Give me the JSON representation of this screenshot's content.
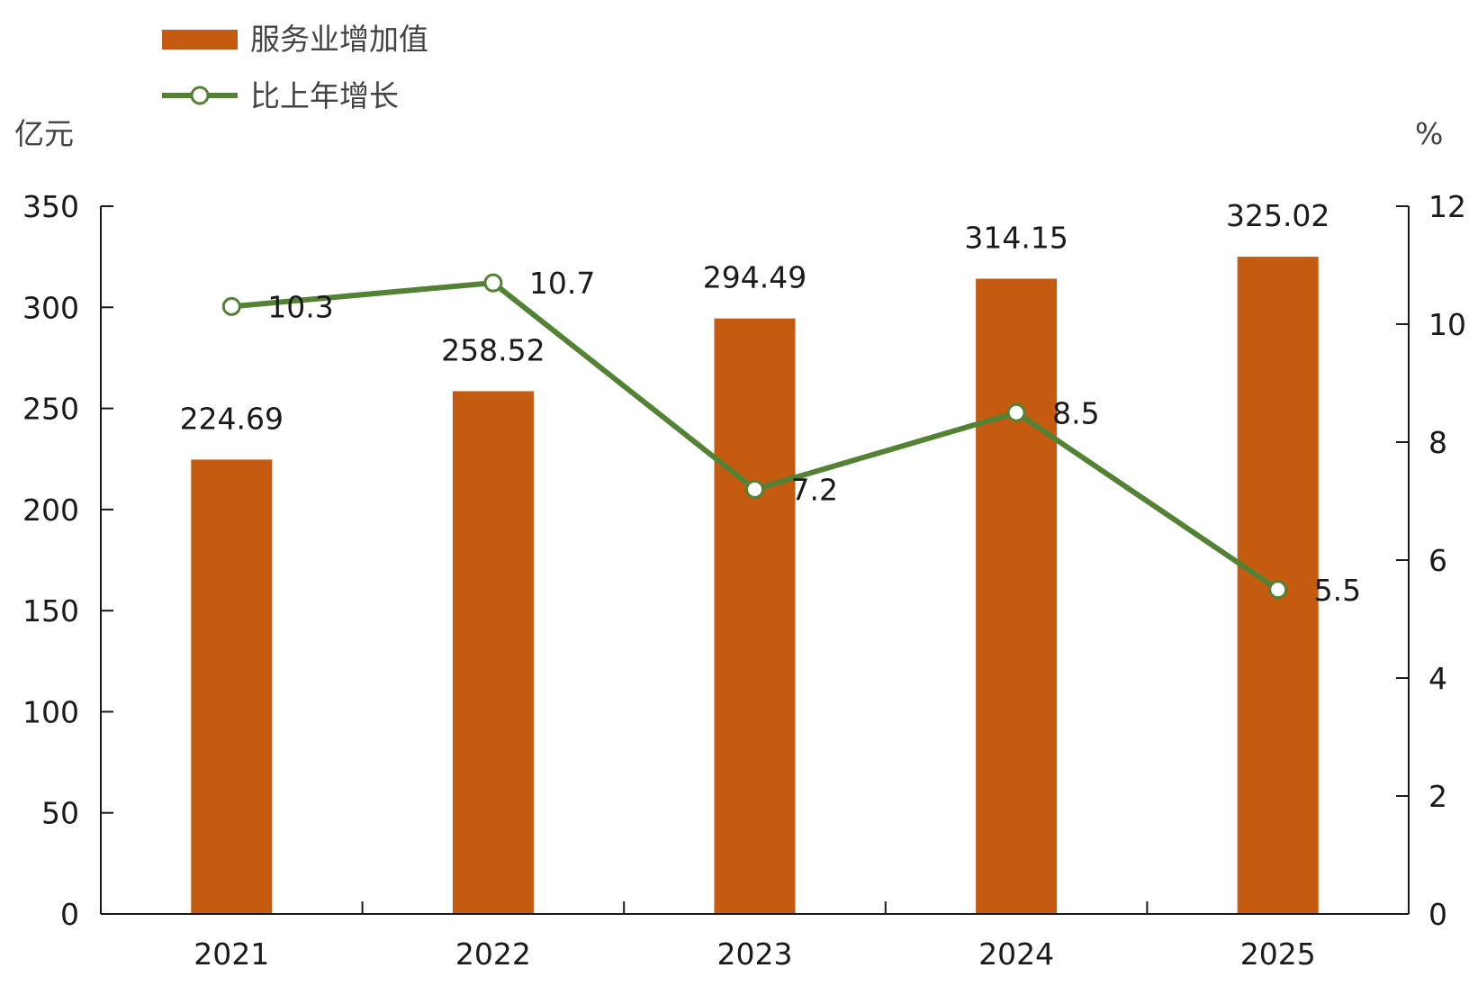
{
  "chart_data": {
    "type": "bar",
    "categories": [
      "2021",
      "2022",
      "2023",
      "2024",
      "2025"
    ],
    "series": [
      {
        "name": "服务业增加值",
        "type": "bar",
        "axis": "left",
        "values": [
          224.69,
          258.52,
          294.49,
          314.15,
          325.02
        ],
        "labels": [
          "224.69",
          "258.52",
          "294.49",
          "314.15",
          "325.02"
        ],
        "color": "#c55a11"
      },
      {
        "name": "比上年增长",
        "type": "line",
        "axis": "right",
        "values": [
          10.3,
          10.7,
          7.2,
          8.5,
          5.5
        ],
        "labels": [
          "10.3",
          "10.7",
          "7.2",
          "8.5",
          "5.5"
        ],
        "color": "#548235"
      }
    ],
    "left_axis": {
      "unit": "亿元",
      "ylim": [
        0,
        350
      ],
      "ticks": [
        "0",
        "50",
        "100",
        "150",
        "200",
        "250",
        "300",
        "350"
      ]
    },
    "right_axis": {
      "unit": "%",
      "ylim": [
        0,
        12
      ],
      "ticks": [
        "0",
        "2",
        "4",
        "6",
        "8",
        "10",
        "12"
      ]
    },
    "grid": false,
    "legend": "top-left"
  }
}
